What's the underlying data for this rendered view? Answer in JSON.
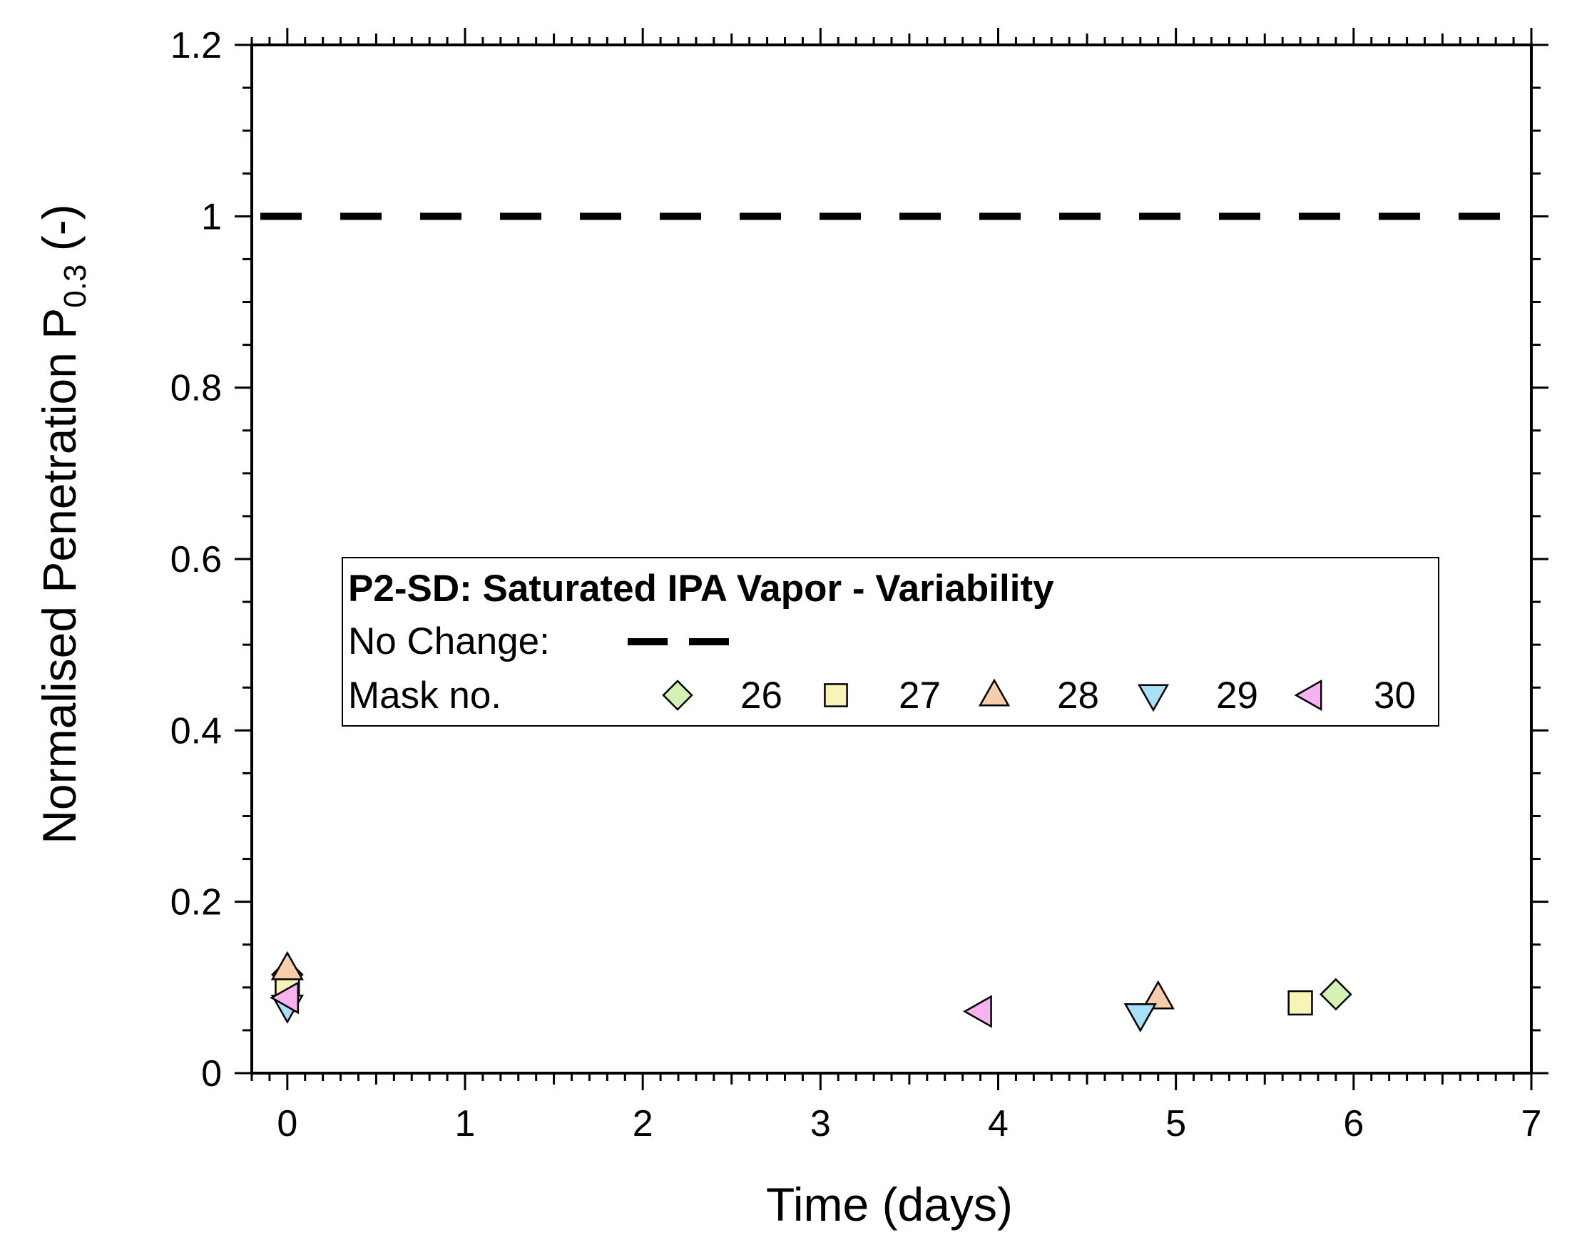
{
  "chart_data": {
    "type": "scatter",
    "xlabel": "Time (days)",
    "ylabel": "Normalised Penetration P",
    "ylabel_subscript": "0.3",
    "ylabel_suffix": " (-)",
    "xlim": [
      -0.2,
      7
    ],
    "ylim": [
      0,
      1.2
    ],
    "xticks": [
      0,
      1,
      2,
      3,
      4,
      5,
      6,
      7
    ],
    "yticks": [
      0,
      0.2,
      0.4,
      0.6,
      0.8,
      1,
      1.2
    ],
    "ytick_labels": [
      "0",
      "0.2",
      "0.4",
      "0.6",
      "0.8",
      "1",
      "1.2"
    ],
    "reference_line": {
      "y": 1.0,
      "style": "dashed",
      "label": "No Change:"
    },
    "legend": {
      "title": "P2-SD:  Saturated IPA Vapor - Variability",
      "no_change_label": "No Change:",
      "mask_label": "Mask no.",
      "placement": "center"
    },
    "series": [
      {
        "name": "26",
        "marker": "diamond",
        "color": "#d4f2b4",
        "points": [
          [
            0,
            0.115
          ],
          [
            5.9,
            0.092
          ]
        ]
      },
      {
        "name": "27",
        "marker": "square",
        "color": "#faf3b8",
        "points": [
          [
            0,
            0.105
          ],
          [
            5.7,
            0.082
          ]
        ]
      },
      {
        "name": "28",
        "marker": "triangle-up",
        "color": "#f8cda9",
        "points": [
          [
            0,
            0.122
          ],
          [
            4.9,
            0.088
          ]
        ]
      },
      {
        "name": "29",
        "marker": "triangle-down",
        "color": "#a8e0f8",
        "points": [
          [
            0,
            0.078
          ],
          [
            4.8,
            0.068
          ]
        ]
      },
      {
        "name": "30",
        "marker": "triangle-left",
        "color": "#f7b2f2",
        "points": [
          [
            0,
            0.088
          ],
          [
            3.9,
            0.072
          ]
        ]
      }
    ]
  }
}
